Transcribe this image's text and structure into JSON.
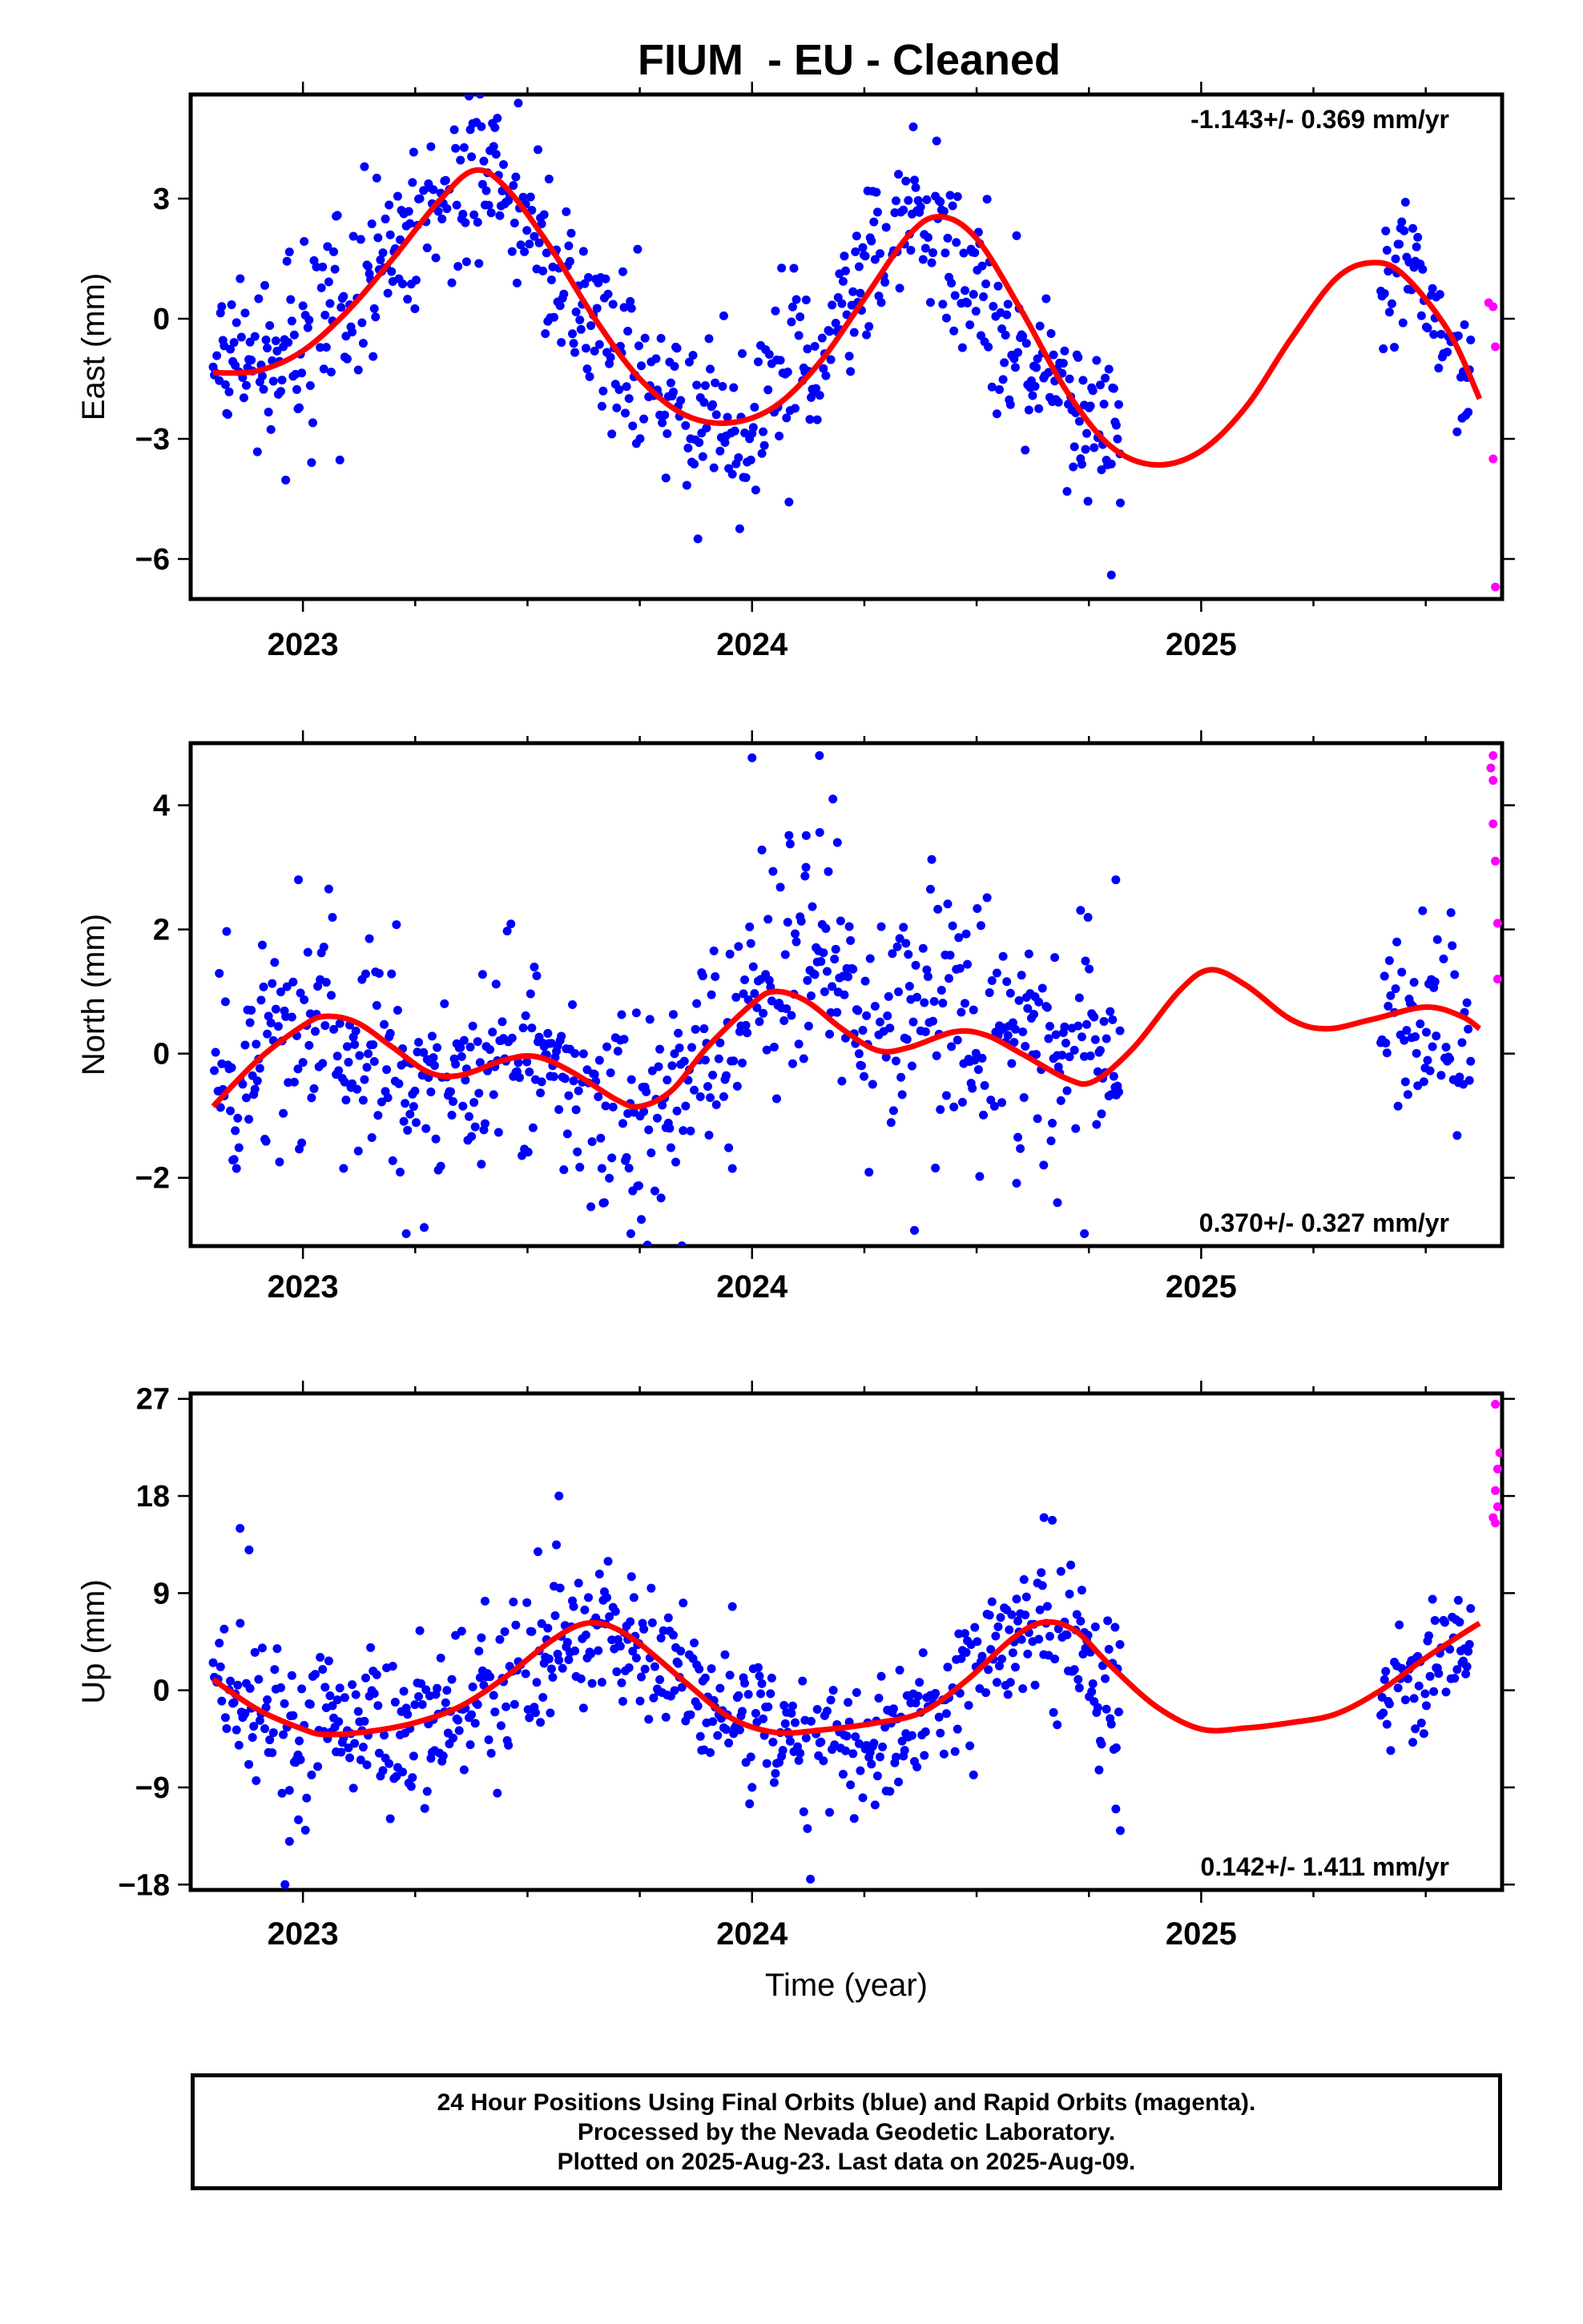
{
  "title": "FIUM  - EU - Cleaned",
  "footer": {
    "line1": "24 Hour Positions Using Final Orbits (blue) and Rapid Orbits (magenta).",
    "line2": "Processed by the Nevada Geodetic Laboratory.",
    "line3": "Plotted on 2025-Aug-23. Last data on 2025-Aug-09."
  },
  "colors": {
    "final_orbits": "#0000ff",
    "rapid_orbits": "#ff00ff",
    "fit": "#ff0000"
  },
  "chart_data": [
    {
      "type": "scatter",
      "ylabel": "East (mm)",
      "xlabel": "",
      "xlim": [
        2022.75,
        2025.67
      ],
      "ylim": [
        -7.0,
        5.6
      ],
      "xticks": [
        "2023",
        "2024",
        "2025"
      ],
      "yticks": [
        -6,
        -3,
        0,
        3
      ],
      "ytick_labels": [
        "−6",
        "−3",
        "0",
        "3"
      ],
      "rate": "-1.143+/- 0.369 mm/yr",
      "rate_position": "top-right",
      "final_trend": [
        [
          2022.8,
          -1.2
        ],
        [
          2022.95,
          -1.0
        ],
        [
          2023.1,
          0.5
        ],
        [
          2023.25,
          2.3
        ],
        [
          2023.38,
          3.8
        ],
        [
          2023.5,
          2.5
        ],
        [
          2023.62,
          0.0
        ],
        [
          2023.75,
          -1.6
        ],
        [
          2023.9,
          -2.6
        ],
        [
          2024.05,
          -2.0
        ],
        [
          2024.2,
          0.2
        ],
        [
          2024.35,
          2.6
        ],
        [
          2024.45,
          1.8
        ],
        [
          2024.58,
          -0.8
        ],
        [
          2024.7,
          -2.1
        ],
        [
          2024.8,
          -3.1
        ]
      ],
      "final_segments": [
        [
          2022.8,
          2024.82
        ],
        [
          2025.4,
          2025.6
        ]
      ],
      "final_scatter": 1.1,
      "outliers": [
        [
          2024.8,
          -6.4
        ],
        [
          2024.82,
          -4.6
        ]
      ],
      "late_trend": [
        [
          2025.4,
          1.6
        ],
        [
          2025.48,
          1.0
        ],
        [
          2025.55,
          -0.5
        ],
        [
          2025.6,
          -2.0
        ]
      ],
      "rapid_points": [
        [
          2025.64,
          0.4
        ],
        [
          2025.65,
          0.3
        ],
        [
          2025.655,
          -0.7
        ],
        [
          2025.65,
          -3.5
        ],
        [
          2025.655,
          -6.7
        ]
      ],
      "fit_curve": [
        [
          2022.8,
          -1.35
        ],
        [
          2022.9,
          -1.3
        ],
        [
          2023.0,
          -0.8
        ],
        [
          2023.1,
          0.2
        ],
        [
          2023.2,
          1.5
        ],
        [
          2023.3,
          2.9
        ],
        [
          2023.38,
          3.7
        ],
        [
          2023.45,
          3.3
        ],
        [
          2023.55,
          1.8
        ],
        [
          2023.65,
          0.0
        ],
        [
          2023.75,
          -1.5
        ],
        [
          2023.85,
          -2.4
        ],
        [
          2023.95,
          -2.6
        ],
        [
          2024.05,
          -2.2
        ],
        [
          2024.15,
          -1.1
        ],
        [
          2024.25,
          0.5
        ],
        [
          2024.35,
          2.1
        ],
        [
          2024.42,
          2.55
        ],
        [
          2024.5,
          2.0
        ],
        [
          2024.6,
          0.2
        ],
        [
          2024.7,
          -1.8
        ],
        [
          2024.8,
          -3.2
        ],
        [
          2024.9,
          -3.65
        ],
        [
          2025.0,
          -3.3
        ],
        [
          2025.1,
          -2.2
        ],
        [
          2025.2,
          -0.5
        ],
        [
          2025.3,
          1.0
        ],
        [
          2025.38,
          1.4
        ],
        [
          2025.45,
          1.1
        ],
        [
          2025.55,
          -0.3
        ],
        [
          2025.62,
          -2.0
        ]
      ]
    },
    {
      "type": "scatter",
      "ylabel": "North (mm)",
      "xlabel": "",
      "xlim": [
        2022.75,
        2025.67
      ],
      "ylim": [
        -3.1,
        5.0
      ],
      "xticks": [
        "2023",
        "2024",
        "2025"
      ],
      "yticks": [
        -2,
        0,
        2,
        4
      ],
      "ytick_labels": [
        "−2",
        "0",
        "2",
        "4"
      ],
      "rate": "0.370+/- 0.327 mm/yr",
      "rate_position": "bottom-right",
      "final_trend": [
        [
          2022.8,
          -0.8
        ],
        [
          2022.95,
          0.1
        ],
        [
          2023.05,
          0.6
        ],
        [
          2023.15,
          0.4
        ],
        [
          2023.25,
          -0.3
        ],
        [
          2023.35,
          -0.6
        ],
        [
          2023.5,
          0.1
        ],
        [
          2023.62,
          -0.5
        ],
        [
          2023.75,
          -0.8
        ],
        [
          2023.85,
          -0.5
        ],
        [
          2023.95,
          0.3
        ],
        [
          2024.05,
          1.0
        ],
        [
          2024.15,
          1.4
        ],
        [
          2024.25,
          0.5
        ],
        [
          2024.4,
          0.8
        ],
        [
          2024.5,
          0.5
        ],
        [
          2024.65,
          -0.1
        ],
        [
          2024.8,
          0.4
        ]
      ],
      "final_segments": [
        [
          2022.8,
          2024.82
        ],
        [
          2025.4,
          2025.6
        ]
      ],
      "final_scatter": 0.9,
      "outliers": [
        [
          2024.15,
          4.8
        ],
        [
          2024.18,
          4.1
        ],
        [
          2024.19,
          3.4
        ],
        [
          2024.12,
          3.0
        ],
        [
          2022.99,
          2.8
        ],
        [
          2024.81,
          2.8
        ],
        [
          2023.73,
          -2.9
        ],
        [
          2024.74,
          -2.9
        ],
        [
          2024.68,
          -2.4
        ],
        [
          2023.23,
          -2.9
        ],
        [
          2023.27,
          -2.8
        ]
      ],
      "late_trend": [
        [
          2025.4,
          0.2
        ],
        [
          2025.5,
          0.6
        ],
        [
          2025.6,
          0.2
        ]
      ],
      "rapid_points": [
        [
          2025.65,
          4.8
        ],
        [
          2025.645,
          4.6
        ],
        [
          2025.65,
          4.4
        ],
        [
          2025.65,
          3.7
        ],
        [
          2025.655,
          3.1
        ],
        [
          2025.66,
          2.1
        ],
        [
          2025.66,
          1.2
        ]
      ],
      "fit_curve": [
        [
          2022.8,
          -0.85
        ],
        [
          2022.9,
          -0.1
        ],
        [
          2023.0,
          0.45
        ],
        [
          2023.05,
          0.6
        ],
        [
          2023.12,
          0.5
        ],
        [
          2023.2,
          0.1
        ],
        [
          2023.28,
          -0.3
        ],
        [
          2023.35,
          -0.35
        ],
        [
          2023.45,
          -0.1
        ],
        [
          2023.52,
          -0.05
        ],
        [
          2023.6,
          -0.3
        ],
        [
          2023.7,
          -0.75
        ],
        [
          2023.75,
          -0.85
        ],
        [
          2023.82,
          -0.6
        ],
        [
          2023.9,
          0.1
        ],
        [
          2024.0,
          0.8
        ],
        [
          2024.05,
          1.0
        ],
        [
          2024.12,
          0.85
        ],
        [
          2024.2,
          0.4
        ],
        [
          2024.28,
          0.05
        ],
        [
          2024.35,
          0.1
        ],
        [
          2024.45,
          0.35
        ],
        [
          2024.52,
          0.3
        ],
        [
          2024.6,
          0.0
        ],
        [
          2024.7,
          -0.4
        ],
        [
          2024.76,
          -0.45
        ],
        [
          2024.85,
          0.1
        ],
        [
          2024.95,
          1.0
        ],
        [
          2025.02,
          1.35
        ],
        [
          2025.1,
          1.1
        ],
        [
          2025.2,
          0.55
        ],
        [
          2025.28,
          0.4
        ],
        [
          2025.38,
          0.55
        ],
        [
          2025.5,
          0.75
        ],
        [
          2025.58,
          0.6
        ],
        [
          2025.62,
          0.4
        ]
      ]
    },
    {
      "type": "scatter",
      "ylabel": "Up (mm)",
      "xlabel": "Time (year)",
      "xlim": [
        2022.75,
        2025.67
      ],
      "ylim": [
        -18.5,
        27.5
      ],
      "xticks": [
        "2023",
        "2024",
        "2025"
      ],
      "yticks": [
        -18,
        -9,
        0,
        9,
        18,
        27
      ],
      "ytick_labels": [
        "−18",
        "−9",
        "0",
        "9",
        "18",
        "27"
      ],
      "rate": "0.142+/- 1.411 mm/yr",
      "rate_position": "bottom-right",
      "final_trend": [
        [
          2022.8,
          1.0
        ],
        [
          2022.95,
          -3.0
        ],
        [
          2023.1,
          -3.5
        ],
        [
          2023.25,
          -3.0
        ],
        [
          2023.4,
          -1.5
        ],
        [
          2023.55,
          2.5
        ],
        [
          2023.65,
          6.0
        ],
        [
          2023.75,
          4.5
        ],
        [
          2023.85,
          1.5
        ],
        [
          2023.95,
          -2.0
        ],
        [
          2024.1,
          -5.0
        ],
        [
          2024.25,
          -4.5
        ],
        [
          2024.4,
          -1.5
        ],
        [
          2024.55,
          3.5
        ],
        [
          2024.65,
          7.0
        ],
        [
          2024.75,
          3.0
        ],
        [
          2024.8,
          -2.0
        ]
      ],
      "final_segments": [
        [
          2022.8,
          2024.82
        ],
        [
          2025.4,
          2025.6
        ]
      ],
      "final_scatter": 3.6,
      "outliers": [
        [
          2022.96,
          -18.0
        ],
        [
          2022.97,
          -14.0
        ],
        [
          2022.99,
          -12.0
        ],
        [
          2022.86,
          15.0
        ],
        [
          2022.88,
          13.0
        ],
        [
          2023.57,
          18.0
        ],
        [
          2024.13,
          -17.5
        ],
        [
          2024.82,
          -13.0
        ],
        [
          2024.81,
          -11.0
        ],
        [
          2024.65,
          16.0
        ]
      ],
      "late_trend": [
        [
          2025.4,
          -1.0
        ],
        [
          2025.5,
          1.5
        ],
        [
          2025.6,
          4.0
        ]
      ],
      "rapid_points": [
        [
          2025.655,
          26.5
        ],
        [
          2025.665,
          22.0
        ],
        [
          2025.66,
          20.5
        ],
        [
          2025.655,
          18.5
        ],
        [
          2025.66,
          17.0
        ],
        [
          2025.65,
          16.0
        ],
        [
          2025.655,
          15.5
        ]
      ],
      "fit_curve": [
        [
          2022.8,
          1.0
        ],
        [
          2022.9,
          -1.8
        ],
        [
          2023.0,
          -3.6
        ],
        [
          2023.05,
          -4.1
        ],
        [
          2023.15,
          -3.8
        ],
        [
          2023.25,
          -3.0
        ],
        [
          2023.35,
          -1.5
        ],
        [
          2023.45,
          1.2
        ],
        [
          2023.55,
          4.5
        ],
        [
          2023.62,
          6.1
        ],
        [
          2023.68,
          6.0
        ],
        [
          2023.75,
          4.3
        ],
        [
          2023.85,
          0.8
        ],
        [
          2023.95,
          -2.5
        ],
        [
          2024.05,
          -3.9
        ],
        [
          2024.15,
          -3.7
        ],
        [
          2024.28,
          -3.0
        ],
        [
          2024.38,
          -2.0
        ],
        [
          2024.48,
          1.0
        ],
        [
          2024.58,
          4.8
        ],
        [
          2024.65,
          6.3
        ],
        [
          2024.72,
          5.5
        ],
        [
          2024.8,
          2.2
        ],
        [
          2024.9,
          -1.5
        ],
        [
          2025.0,
          -3.6
        ],
        [
          2025.1,
          -3.5
        ],
        [
          2025.2,
          -3.0
        ],
        [
          2025.3,
          -2.2
        ],
        [
          2025.4,
          0.0
        ],
        [
          2025.5,
          3.0
        ],
        [
          2025.6,
          5.7
        ],
        [
          2025.62,
          6.2
        ]
      ]
    }
  ]
}
